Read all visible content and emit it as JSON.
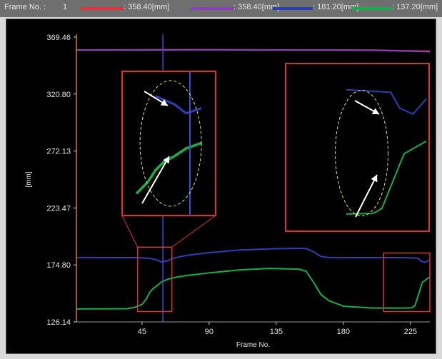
{
  "legend": {
    "frame_label": "Frame No. :",
    "frame_value": "1",
    "entries": [
      {
        "color": "#e8303a",
        "text": ": 358.40[mm]"
      },
      {
        "color": "#8a3fc4",
        "text": ": 358.40[mm]"
      },
      {
        "color": "#2b3fb8",
        "text": ": 181.20[mm]"
      },
      {
        "color": "#14b04a",
        "text": ": 137.20[mm]"
      }
    ]
  },
  "colors": {
    "red": "#e8303a",
    "purple": "#8a3fc4",
    "blue": "#2b3fb8",
    "green": "#14b04a",
    "zoom_box": "#e03030",
    "highlight": "#e6e65a",
    "arrow": "#ffffff",
    "cursor": "#3a4fd8",
    "axis": "#c0843a"
  },
  "chart_data": {
    "type": "line",
    "xlabel": "Frame No.",
    "ylabel": "[mm]",
    "x_ticks": [
      45,
      90,
      135,
      180,
      225
    ],
    "y_ticks": [
      "369.46",
      "320.80",
      "272.13",
      "223.47",
      "174.80",
      "126.14"
    ],
    "xlim": [
      1,
      238
    ],
    "ylim": [
      126.14,
      369.46
    ],
    "cursor_frame": 59,
    "series": [
      {
        "color": "red",
        "x": [
          1,
          40,
          80,
          120,
          160,
          200,
          220,
          238
        ],
        "y": [
          358.4,
          358.6,
          358.7,
          358.6,
          358.5,
          358.3,
          357.8,
          357.4
        ]
      },
      {
        "color": "purple",
        "x": [
          1,
          40,
          80,
          120,
          160,
          200,
          220,
          238
        ],
        "y": [
          358.4,
          358.5,
          358.6,
          358.5,
          358.4,
          358.2,
          357.6,
          357.0
        ]
      },
      {
        "color": "blue",
        "x": [
          1,
          20,
          40,
          50,
          55,
          58,
          62,
          66,
          75,
          90,
          110,
          130,
          150,
          155,
          160,
          165,
          170,
          180,
          200,
          220,
          225,
          230,
          232,
          235,
          238
        ],
        "y": [
          181.2,
          181.0,
          181.0,
          180.6,
          179.0,
          177.3,
          178.3,
          180.6,
          183.0,
          185.3,
          187.5,
          188.5,
          189.0,
          188.8,
          186.0,
          182.0,
          181.2,
          181.0,
          181.0,
          181.0,
          180.8,
          180.6,
          178.0,
          177.0,
          179.5
        ]
      },
      {
        "color": "green",
        "x": [
          1,
          20,
          35,
          40,
          45,
          48,
          50,
          52,
          55,
          58,
          62,
          68,
          75,
          90,
          110,
          130,
          150,
          155,
          160,
          165,
          170,
          180,
          200,
          220,
          226,
          228,
          230,
          233,
          238
        ],
        "y": [
          137.2,
          137.3,
          137.4,
          138.5,
          141.0,
          146.0,
          151.0,
          154.2,
          157.0,
          160.2,
          162.5,
          164.3,
          165.8,
          168.0,
          170.5,
          171.8,
          171.2,
          169.5,
          160.0,
          149.5,
          144.5,
          139.5,
          138.0,
          138.0,
          138.2,
          140.0,
          148.0,
          160.0,
          164.6
        ]
      }
    ],
    "zoom_regions": [
      {
        "x_range": [
          42,
          65
        ],
        "y_range": [
          135.0,
          190.0
        ]
      },
      {
        "x_range": [
          207,
          238
        ],
        "y_range": [
          135.0,
          185.0
        ]
      }
    ]
  }
}
